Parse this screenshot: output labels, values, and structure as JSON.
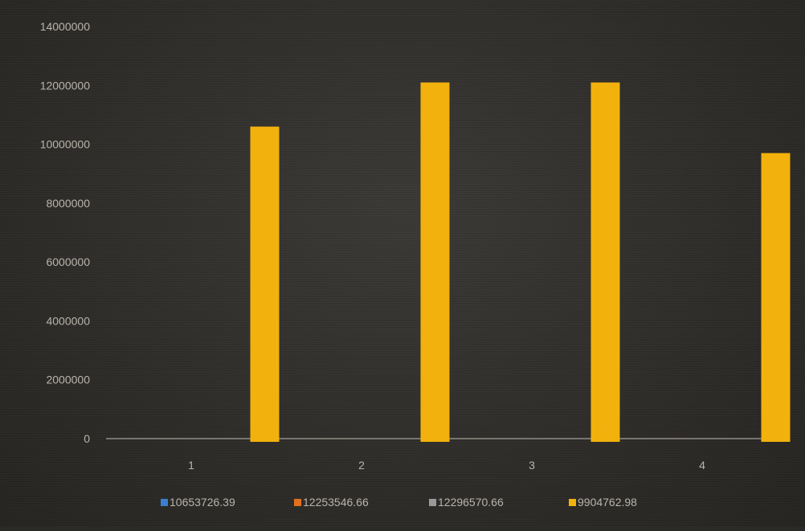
{
  "chart_data": {
    "type": "bar",
    "title": "",
    "xlabel": "",
    "ylabel": "",
    "categories": [
      "1",
      "2",
      "3",
      "4"
    ],
    "series": [
      {
        "name": "10653726.39",
        "color": "#3a7fd0",
        "values": [
          0,
          0,
          0,
          0
        ]
      },
      {
        "name": "12253546.66",
        "color": "#e2711d",
        "values": [
          0,
          0,
          0,
          0
        ]
      },
      {
        "name": "12296570.66",
        "color": "#9a9a9a",
        "values": [
          0,
          0,
          0,
          0
        ]
      },
      {
        "name": "9904762.98",
        "color": "#f2b10c",
        "values": [
          10600000,
          12100000,
          12100000,
          9700000
        ]
      }
    ],
    "ylim": [
      0,
      14000000
    ],
    "yticks": [
      "0",
      "2000000",
      "4000000",
      "6000000",
      "8000000",
      "10000000",
      "12000000",
      "14000000"
    ],
    "grid": false,
    "legend_position": "bottom",
    "colors": {
      "background": "#2b2a27",
      "axis_text": "#b8b4ac",
      "axis_line": "#8e8b85"
    }
  }
}
